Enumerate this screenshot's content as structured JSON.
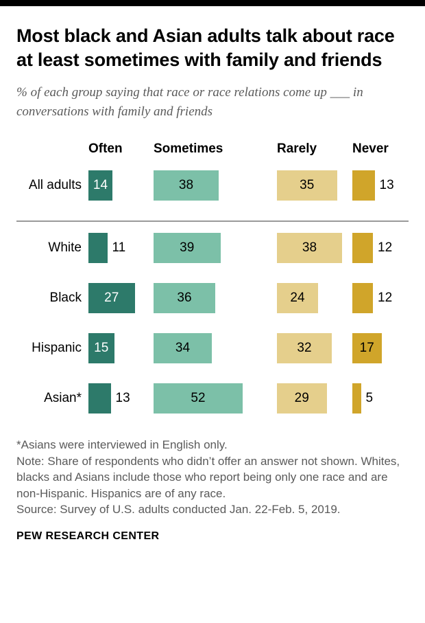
{
  "header": {
    "title": "Most black and Asian adults talk about race at least sometimes with family and friends",
    "subtitle": "% of each group saying that race or race relations come up ___ in conversations with family and friends"
  },
  "chart_data": {
    "type": "bar",
    "orientation": "horizontal",
    "categories": [
      "All adults",
      "White",
      "Black",
      "Hispanic",
      "Asian*"
    ],
    "series": [
      {
        "name": "Often",
        "color": "#2d7a6a",
        "values": [
          14,
          11,
          27,
          15,
          13
        ]
      },
      {
        "name": "Sometimes",
        "color": "#7cc0a8",
        "values": [
          38,
          39,
          36,
          34,
          52
        ]
      },
      {
        "name": "Rarely",
        "color": "#e5cf8c",
        "values": [
          35,
          38,
          24,
          32,
          29
        ]
      },
      {
        "name": "Never",
        "color": "#d0a52a",
        "values": [
          13,
          12,
          12,
          17,
          5
        ]
      }
    ],
    "value_unit": "percent",
    "value_range": [
      0,
      60
    ],
    "separator_after_category": "All adults",
    "legend_position": "column-headers",
    "grid": false
  },
  "footer": {
    "notes": [
      "*Asians were interviewed in English only.",
      "Note: Share of respondents who didn’t offer an answer not shown. Whites, blacks and Asians include those who report being only one race and are non-Hispanic. Hispanics are of any race.",
      "Source: Survey of U.S. adults conducted Jan. 22-Feb. 5, 2019."
    ],
    "branding": "PEW RESEARCH CENTER"
  }
}
